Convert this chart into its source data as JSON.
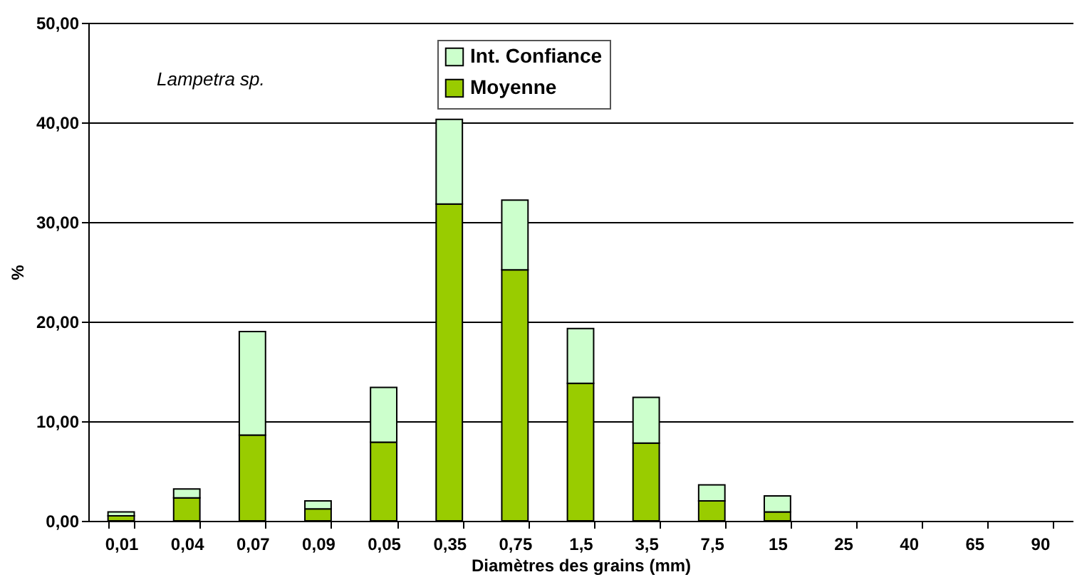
{
  "chart_data": {
    "type": "bar",
    "stacked": true,
    "xlabel": "Diamètres des grains (mm)",
    "ylabel": "%",
    "annotations": [
      "Lampetra sp."
    ],
    "categories": [
      "0,01",
      "0,04",
      "0,07",
      "0,09",
      "0,05",
      "0,35",
      "0,75",
      "1,5",
      "3,5",
      "7,5",
      "15",
      "25",
      "40",
      "65",
      "90"
    ],
    "series": [
      {
        "name": "Moyenne",
        "color": "#99cc00",
        "values": [
          0.5,
          2.3,
          8.6,
          1.2,
          7.9,
          31.8,
          25.2,
          13.8,
          7.8,
          2.0,
          0.9,
          0,
          0,
          0,
          0
        ]
      },
      {
        "name": "Int. Confiance",
        "color": "#ccffcc",
        "values": [
          0.4,
          0.9,
          10.4,
          0.8,
          5.5,
          8.5,
          7.0,
          5.5,
          4.6,
          1.6,
          1.6,
          0,
          0,
          0,
          0
        ]
      }
    ],
    "ylim": [
      0,
      50
    ],
    "yticks": [
      {
        "value": 0,
        "label": "0,00"
      },
      {
        "value": 10,
        "label": "10,00"
      },
      {
        "value": 20,
        "label": "20,00"
      },
      {
        "value": 30,
        "label": "30,00"
      },
      {
        "value": 40,
        "label": "40,00"
      },
      {
        "value": 50,
        "label": "50,00"
      }
    ],
    "grid": "y",
    "legend": "top"
  }
}
